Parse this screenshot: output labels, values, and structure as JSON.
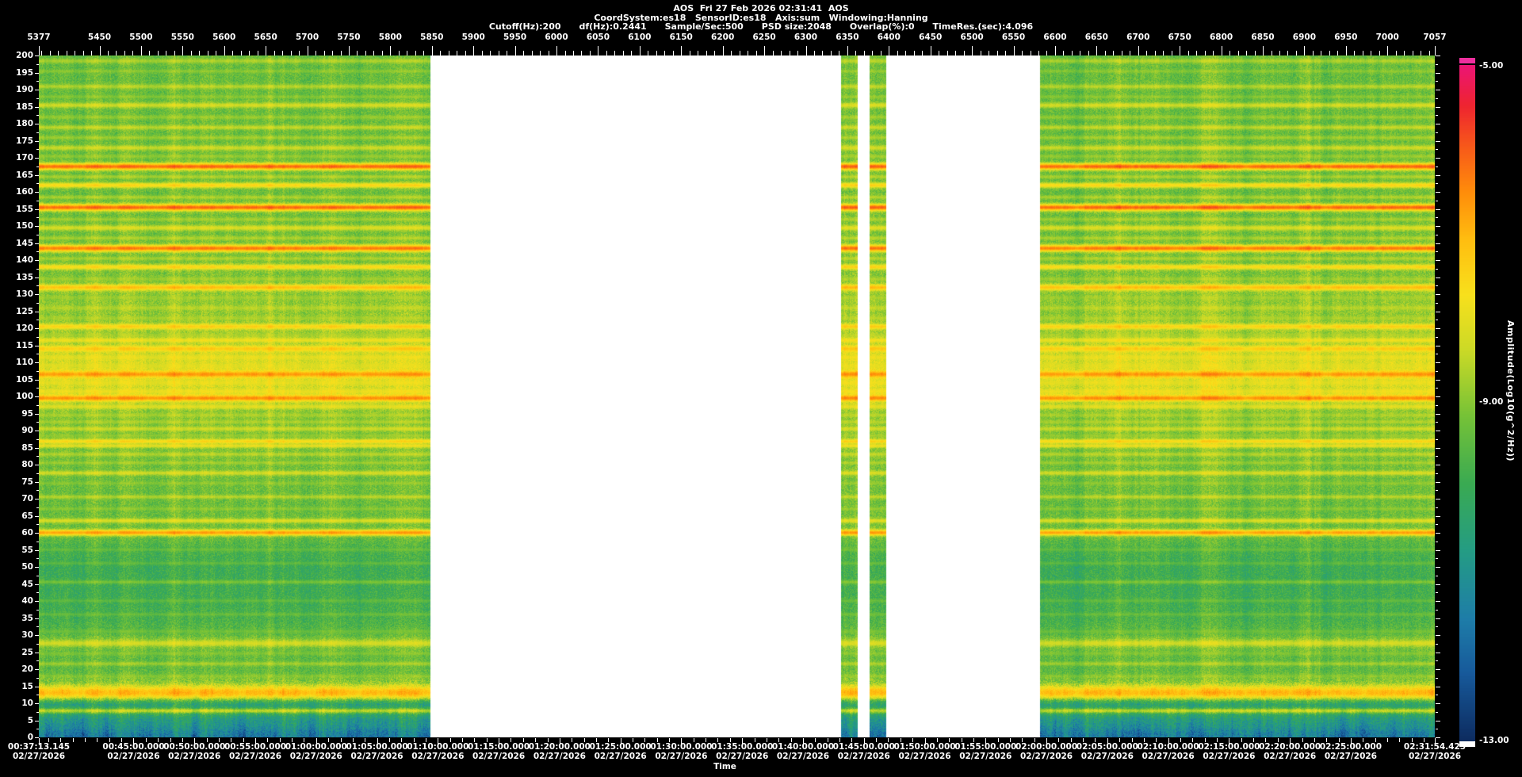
{
  "header": {
    "title_line": "AOS  Fri 27 Feb 2026 02:31:41  AOS",
    "config_line": "CoordSystem:es18   SensorID:es18   Axis:sum   Windowing:Hanning",
    "params_line": "Cutoff(Hz):200      df(Hz):0.2441      Sample/Sec:500      PSD size:2048      Overlap(%):0      TimeRes.(sec):4.096"
  },
  "chart_data": {
    "type": "heatmap",
    "subtype": "spectrogram",
    "title": "AOS  Fri 27 Feb 2026 02:31:41  AOS",
    "x_axis_top": {
      "name": "record-number",
      "start": 5377,
      "end": 7057,
      "minor_step": 10,
      "labels": [
        5377,
        5450,
        5500,
        5550,
        5600,
        5650,
        5700,
        5750,
        5800,
        5850,
        5900,
        5950,
        6000,
        6050,
        6100,
        6150,
        6200,
        6250,
        6300,
        6350,
        6400,
        6450,
        6500,
        6550,
        6600,
        6650,
        6700,
        6750,
        6800,
        6850,
        6900,
        6950,
        7000,
        7057
      ]
    },
    "y_axis": {
      "name": "frequency-hz",
      "min": 0,
      "max": 200,
      "minor_step": 2.5,
      "labels": [
        200,
        195,
        190,
        185,
        180,
        175,
        170,
        165,
        160,
        155,
        150,
        145,
        140,
        135,
        130,
        125,
        120,
        115,
        110,
        105,
        100,
        95,
        90,
        85,
        80,
        75,
        70,
        65,
        60,
        55,
        50,
        45,
        40,
        35,
        30,
        25,
        20,
        15,
        10,
        5,
        0
      ]
    },
    "x_axis_bottom": {
      "name": "time",
      "title": "Time",
      "start_sec": 2233.145,
      "end_sec": 9114.425,
      "minor_step_sec": 60,
      "labels": [
        "00:37:13.145",
        "00:45:00.000",
        "00:50:00.000",
        "00:55:00.000",
        "01:00:00.000",
        "01:05:00.000",
        "01:10:00.000",
        "01:15:00.000",
        "01:20:00.000",
        "01:25:00.000",
        "01:30:00.000",
        "01:35:00.000",
        "01:40:00.000",
        "01:45:00.000",
        "01:50:00.000",
        "01:55:00.000",
        "02:00:00.000",
        "02:05:00.000",
        "02:10:00.000",
        "02:15:00.000",
        "02:20:00.000",
        "02:25:00.000",
        "02:31:54.425"
      ],
      "date_below_each": "02/27/2026"
    },
    "colorbar": {
      "label": "Amplitude(Log10(g^2/Hz))",
      "tick_labels": [
        "-5.00",
        "-9.00",
        "-13.00"
      ],
      "max_value": -5,
      "min_value": -13,
      "over_color": "#ee2f9e",
      "under_color": "#ffffff",
      "stops": [
        [
          0.0,
          13,
          44,
          96
        ],
        [
          0.1,
          23,
          90,
          155
        ],
        [
          0.18,
          30,
          125,
          168
        ],
        [
          0.28,
          36,
          156,
          132
        ],
        [
          0.38,
          58,
          170,
          82
        ],
        [
          0.48,
          118,
          194,
          55
        ],
        [
          0.58,
          205,
          218,
          38
        ],
        [
          0.66,
          248,
          224,
          28
        ],
        [
          0.74,
          255,
          190,
          16
        ],
        [
          0.81,
          255,
          142,
          10
        ],
        [
          0.88,
          247,
          88,
          26
        ],
        [
          0.94,
          238,
          36,
          48
        ],
        [
          1.0,
          236,
          20,
          118
        ]
      ]
    },
    "data_gaps_frac": [
      [
        0.2805,
        0.5747
      ],
      [
        0.5866,
        0.5951
      ],
      [
        0.607,
        0.7172
      ]
    ],
    "base_profile": [
      [
        0,
        -11.6
      ],
      [
        1.5,
        -11.4
      ],
      [
        3,
        -11.0
      ],
      [
        4.5,
        -10.8
      ],
      [
        5.5,
        -10.6
      ],
      [
        6.5,
        -10.2
      ],
      [
        7.5,
        -9.5
      ],
      [
        8.5,
        -10.1
      ],
      [
        9.5,
        -10.4
      ],
      [
        10.5,
        -9.8
      ],
      [
        11.5,
        -8.7
      ],
      [
        13,
        -7.7
      ],
      [
        14.5,
        -8.1
      ],
      [
        16,
        -8.9
      ],
      [
        18,
        -9.3
      ],
      [
        20,
        -9.4
      ],
      [
        23,
        -9.4
      ],
      [
        26,
        -9.2
      ],
      [
        28,
        -8.9
      ],
      [
        30,
        -9.4
      ],
      [
        34,
        -9.7
      ],
      [
        38,
        -9.8
      ],
      [
        44,
        -9.9
      ],
      [
        50,
        -9.9
      ],
      [
        55,
        -9.7
      ],
      [
        58,
        -9.4
      ],
      [
        62,
        -9.25
      ],
      [
        70,
        -9.3
      ],
      [
        80,
        -9.2
      ],
      [
        86,
        -9.05
      ],
      [
        92,
        -9.1
      ],
      [
        96,
        -8.9
      ],
      [
        99,
        -8.5
      ],
      [
        102,
        -8.25
      ],
      [
        105,
        -8.1
      ],
      [
        108,
        -8.1
      ],
      [
        111,
        -8.2
      ],
      [
        113,
        -8.4
      ],
      [
        116,
        -8.7
      ],
      [
        120,
        -8.8
      ],
      [
        124,
        -8.9
      ],
      [
        128,
        -8.9
      ],
      [
        132,
        -9.0
      ],
      [
        136,
        -9.1
      ],
      [
        140,
        -9.2
      ],
      [
        146,
        -9.2
      ],
      [
        152,
        -9.25
      ],
      [
        160,
        -9.3
      ],
      [
        175,
        -9.3
      ],
      [
        200,
        -9.35
      ]
    ],
    "spectral_lines": [
      [
        198.5,
        -8.6,
        0.7
      ],
      [
        195.5,
        -8.9,
        0.5
      ],
      [
        191,
        -8.5,
        0.7
      ],
      [
        188,
        -8.9,
        0.5
      ],
      [
        185.5,
        -8.2,
        0.8
      ],
      [
        182,
        -8.8,
        0.6
      ],
      [
        179,
        -8.4,
        0.7
      ],
      [
        176,
        -8.7,
        0.6
      ],
      [
        173,
        -8.3,
        0.8
      ],
      [
        170.5,
        -8.8,
        0.6
      ],
      [
        167.5,
        -6.1,
        1.0
      ],
      [
        164.5,
        -8.6,
        0.6
      ],
      [
        162,
        -7.5,
        0.8
      ],
      [
        158.5,
        -8.6,
        0.6
      ],
      [
        155.5,
        -6.1,
        1.0
      ],
      [
        152,
        -8.7,
        0.6
      ],
      [
        149.5,
        -8.1,
        0.8
      ],
      [
        146.5,
        -8.6,
        0.6
      ],
      [
        143.5,
        -6.3,
        1.0
      ],
      [
        140.5,
        -8.6,
        0.6
      ],
      [
        138,
        -7.5,
        0.8
      ],
      [
        134.5,
        -8.7,
        0.6
      ],
      [
        132,
        -7.1,
        0.9
      ],
      [
        129,
        -8.7,
        0.6
      ],
      [
        126,
        -8.5,
        0.7
      ],
      [
        123,
        -8.6,
        0.6
      ],
      [
        120.5,
        -7.4,
        0.8
      ],
      [
        118,
        -8.6,
        0.6
      ],
      [
        116.5,
        -7.8,
        0.7
      ],
      [
        114,
        -7.3,
        0.9
      ],
      [
        111.5,
        -7.9,
        0.7
      ],
      [
        109,
        -8.0,
        0.7
      ],
      [
        106.5,
        -6.6,
        0.9
      ],
      [
        104,
        -7.9,
        0.7
      ],
      [
        101.5,
        -7.8,
        0.7
      ],
      [
        99.5,
        -6.5,
        0.9
      ],
      [
        97,
        -8.0,
        0.7
      ],
      [
        94.5,
        -8.6,
        0.6
      ],
      [
        92.5,
        -8.6,
        0.6
      ],
      [
        90.5,
        -8.3,
        0.7
      ],
      [
        88.5,
        -8.8,
        0.5
      ],
      [
        86.8,
        -7.5,
        0.7
      ],
      [
        85.5,
        -7.9,
        0.6
      ],
      [
        83,
        -8.5,
        0.6
      ],
      [
        80.5,
        -8.7,
        0.5
      ],
      [
        77.5,
        -8.2,
        0.7
      ],
      [
        74.5,
        -8.9,
        0.5
      ],
      [
        70.5,
        -8.5,
        0.6
      ],
      [
        67,
        -8.9,
        0.5
      ],
      [
        63.5,
        -8.1,
        0.7
      ],
      [
        60,
        -6.7,
        0.9
      ],
      [
        55,
        -9.3,
        0.5
      ],
      [
        51,
        -9.4,
        0.5
      ],
      [
        45.5,
        -9.1,
        0.6
      ],
      [
        40,
        -9.4,
        0.5
      ],
      [
        36,
        -9.3,
        0.5
      ],
      [
        31,
        -9.2,
        0.5
      ],
      [
        27.5,
        -8.2,
        0.9
      ],
      [
        24.5,
        -9.0,
        0.5
      ],
      [
        21.5,
        -8.7,
        0.6
      ],
      [
        17.8,
        -8.9,
        0.6
      ],
      [
        13,
        -7.0,
        1.4
      ],
      [
        7.7,
        -8.4,
        0.6
      ]
    ],
    "noise": {
      "speckle": 0.9,
      "column": 0.3,
      "low_freq_streak": 1.1,
      "low_freq_cutoff": 18
    }
  }
}
